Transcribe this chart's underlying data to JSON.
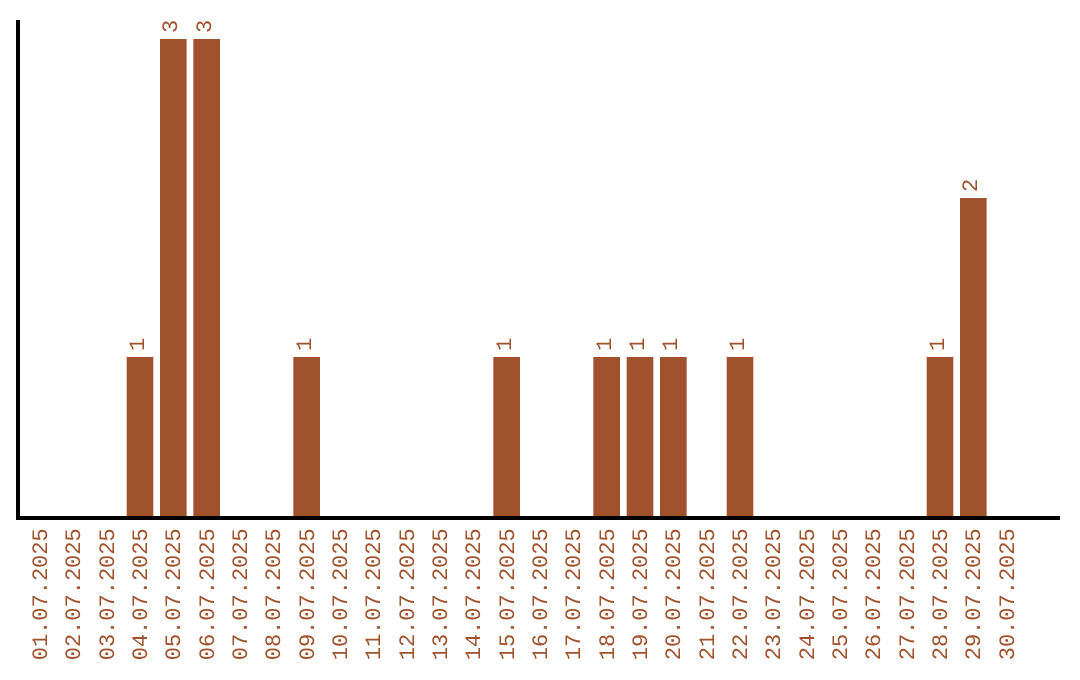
{
  "chart_data": {
    "type": "bar",
    "categories": [
      "01.07.2025",
      "02.07.2025",
      "03.07.2025",
      "04.07.2025",
      "05.07.2025",
      "06.07.2025",
      "07.07.2025",
      "08.07.2025",
      "09.07.2025",
      "10.07.2025",
      "11.07.2025",
      "12.07.2025",
      "13.07.2025",
      "14.07.2025",
      "15.07.2025",
      "16.07.2025",
      "17.07.2025",
      "18.07.2025",
      "19.07.2025",
      "20.07.2025",
      "21.07.2025",
      "22.07.2025",
      "23.07.2025",
      "24.07.2025",
      "25.07.2025",
      "26.07.2025",
      "27.07.2025",
      "28.07.2025",
      "29.07.2025",
      "30.07.2025"
    ],
    "values": [
      0,
      0,
      0,
      1,
      3,
      3,
      0,
      0,
      1,
      0,
      0,
      0,
      0,
      0,
      1,
      0,
      0,
      1,
      1,
      1,
      0,
      1,
      0,
      0,
      0,
      0,
      0,
      1,
      2,
      0
    ],
    "value_labels": [
      null,
      null,
      null,
      "1",
      "3",
      "3",
      null,
      null,
      "1",
      null,
      null,
      null,
      null,
      null,
      "1",
      null,
      null,
      "1",
      "1",
      "1",
      null,
      "1",
      null,
      null,
      null,
      null,
      null,
      "1",
      "2",
      null
    ],
    "color": "#a0522d",
    "ylim": [
      0,
      3.12
    ],
    "tick_labels": "x"
  }
}
